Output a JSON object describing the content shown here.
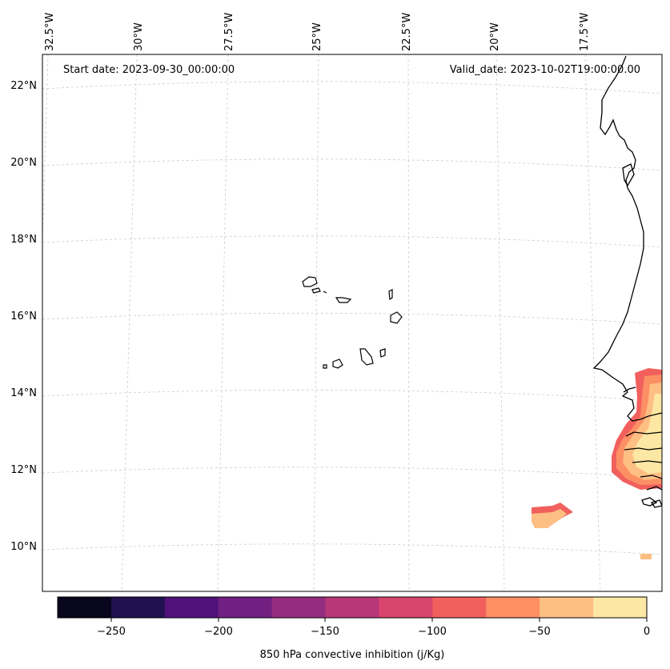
{
  "map": {
    "start_label": "Start date: 2023-09-30_00:00:00",
    "valid_label": "Valid_date: 2023-10-02T19:00:00.00",
    "lon_labels": [
      "32.5°W",
      "30°W",
      "27.5°W",
      "25°W",
      "22.5°W",
      "20°W",
      "17.5°W"
    ],
    "lat_labels": [
      "22°N",
      "20°N",
      "18°N",
      "16°N",
      "14°N",
      "12°N",
      "10°N"
    ],
    "gridlines": true,
    "coastline_color": "#000000",
    "grid_color": "#cccccc"
  },
  "colorbar": {
    "label": "850 hPa convective inhibition (j/Kg)",
    "ticks": [
      "−250",
      "−200",
      "−150",
      "−100",
      "−50",
      "0"
    ],
    "levels": [
      -275,
      -250,
      -225,
      -200,
      -175,
      -150,
      -125,
      -100,
      -75,
      -50,
      -25,
      0
    ],
    "colors": [
      "#07061c",
      "#221150",
      "#4f127b",
      "#711f81",
      "#942c80",
      "#b73779",
      "#d8456c",
      "#f1605d",
      "#fd8f65",
      "#febf84",
      "#fde7a4"
    ]
  }
}
